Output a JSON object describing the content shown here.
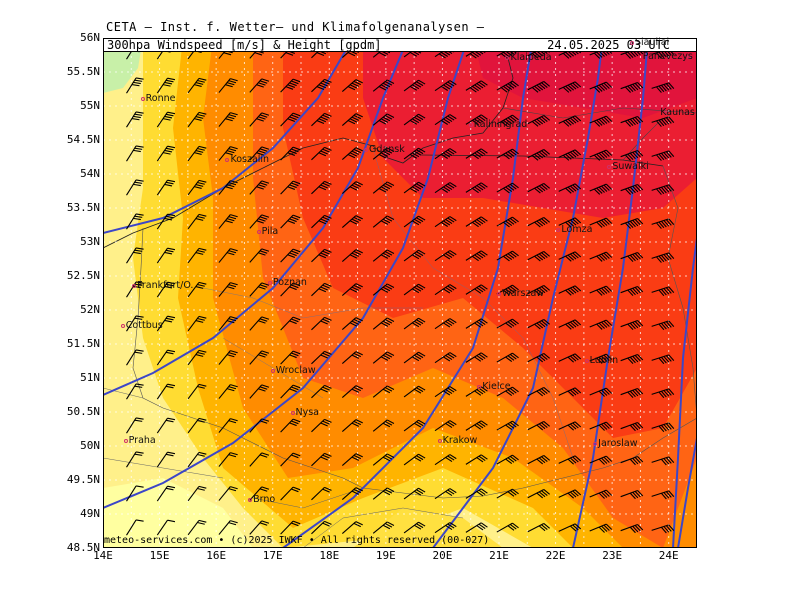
{
  "header": {
    "title": "CETA – Inst. f. Wetter– und Klimafolgenanalysen –",
    "product": "300hpa Windspeed [m/s] & Height [gpdm]",
    "datetime": "24.05.2025 03 UTC"
  },
  "footer": {
    "credit": "meteo-services.com • (c)2025 IWKF • All rights reserved (00-027)"
  },
  "axes": {
    "latitude_labels": [
      "56N",
      "55.5N",
      "55N",
      "54.5N",
      "54N",
      "53.5N",
      "53N",
      "52.5N",
      "52N",
      "51.5N",
      "51N",
      "50.5N",
      "50N",
      "49.5N",
      "49N",
      "48.5N"
    ],
    "longitude_labels": [
      "14E",
      "15E",
      "16E",
      "17E",
      "18E",
      "19E",
      "20E",
      "21E",
      "22E",
      "23E",
      "24E"
    ],
    "lat_range": [
      48.5,
      56
    ],
    "lon_range": [
      14,
      24.5
    ]
  },
  "colors": {
    "level_lightgreen": "#c8f0a8",
    "level_paleyellow": "#fff08a",
    "level_yellow": "#ffdc32",
    "level_gold": "#ffb400",
    "level_orange": "#ff8c00",
    "level_deeporange": "#ff6414",
    "level_red": "#fa3c14",
    "level_crimson": "#eb1e32",
    "contour": "#3c46c8",
    "grid": "#ffffff",
    "border": "#222222"
  },
  "cities": [
    {
      "name": "Klaipeda",
      "lon": 21.15,
      "lat": 55.7
    },
    {
      "name": "Siauliai",
      "lon": 23.35,
      "lat": 55.92
    },
    {
      "name": "Panevezys",
      "lon": 24.35,
      "lat": 55.72
    },
    {
      "name": "Ronne",
      "lon": 14.7,
      "lat": 55.1
    },
    {
      "name": "Kaliningrad",
      "lon": 20.5,
      "lat": 54.72
    },
    {
      "name": "Kaunas",
      "lon": 23.95,
      "lat": 54.9
    },
    {
      "name": "Gdansk",
      "lon": 18.65,
      "lat": 54.35
    },
    {
      "name": "Koszalin",
      "lon": 16.2,
      "lat": 54.2
    },
    {
      "name": "Suwalki",
      "lon": 22.95,
      "lat": 54.1
    },
    {
      "name": "Pila",
      "lon": 16.75,
      "lat": 53.15
    },
    {
      "name": "Lomza",
      "lon": 22.05,
      "lat": 53.17
    },
    {
      "name": "Frankfurt/O.",
      "lon": 14.55,
      "lat": 52.35
    },
    {
      "name": "Poznan",
      "lon": 16.95,
      "lat": 52.4
    },
    {
      "name": "Warszaw",
      "lon": 21.0,
      "lat": 52.23
    },
    {
      "name": "Cottbus",
      "lon": 14.35,
      "lat": 51.77
    },
    {
      "name": "Lublin",
      "lon": 22.55,
      "lat": 51.25
    },
    {
      "name": "Wroclaw",
      "lon": 17.0,
      "lat": 51.1
    },
    {
      "name": "Kielce",
      "lon": 20.65,
      "lat": 50.87
    },
    {
      "name": "Nysa",
      "lon": 17.35,
      "lat": 50.48
    },
    {
      "name": "Praha",
      "lon": 14.4,
      "lat": 50.08
    },
    {
      "name": "Krakow",
      "lon": 19.95,
      "lat": 50.07
    },
    {
      "name": "Jaroslaw",
      "lon": 22.7,
      "lat": 50.03
    },
    {
      "name": "Brno",
      "lon": 16.6,
      "lat": 49.2
    }
  ]
}
